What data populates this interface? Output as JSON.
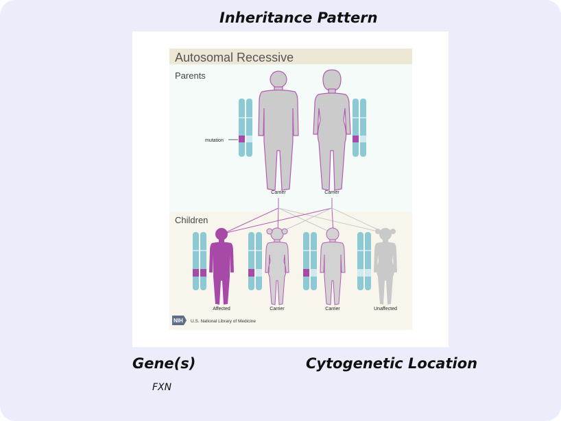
{
  "section": {
    "inheritance_title": "Inheritance Pattern",
    "genes_title": "Gene(s)",
    "cytogenetic_title": "Cytogenetic Location",
    "gene_value": "FXN"
  },
  "diagram": {
    "title": "Autosomal Recessive",
    "parents_label": "Parents",
    "children_label": "Children",
    "mutation_label": "mutation",
    "parent_labels": [
      "Carrier",
      "Carrier"
    ],
    "child_labels": [
      "Affected",
      "Carrier",
      "Carrier",
      "Unaffected"
    ],
    "credit_logo": "NIH",
    "credit_text": "U.S. National Library of Medicine",
    "colors": {
      "chromosome": "#8cc9d4",
      "chromosome_light": "#cfeaef",
      "mutation": "#a74aa7",
      "figure_gray": "#cbcbcb",
      "figure_outline": "#b45ab4",
      "parents_bg": "#f5fbf9",
      "children_bg": "#f8f6ec",
      "title_bar": "#ede7d6"
    }
  }
}
